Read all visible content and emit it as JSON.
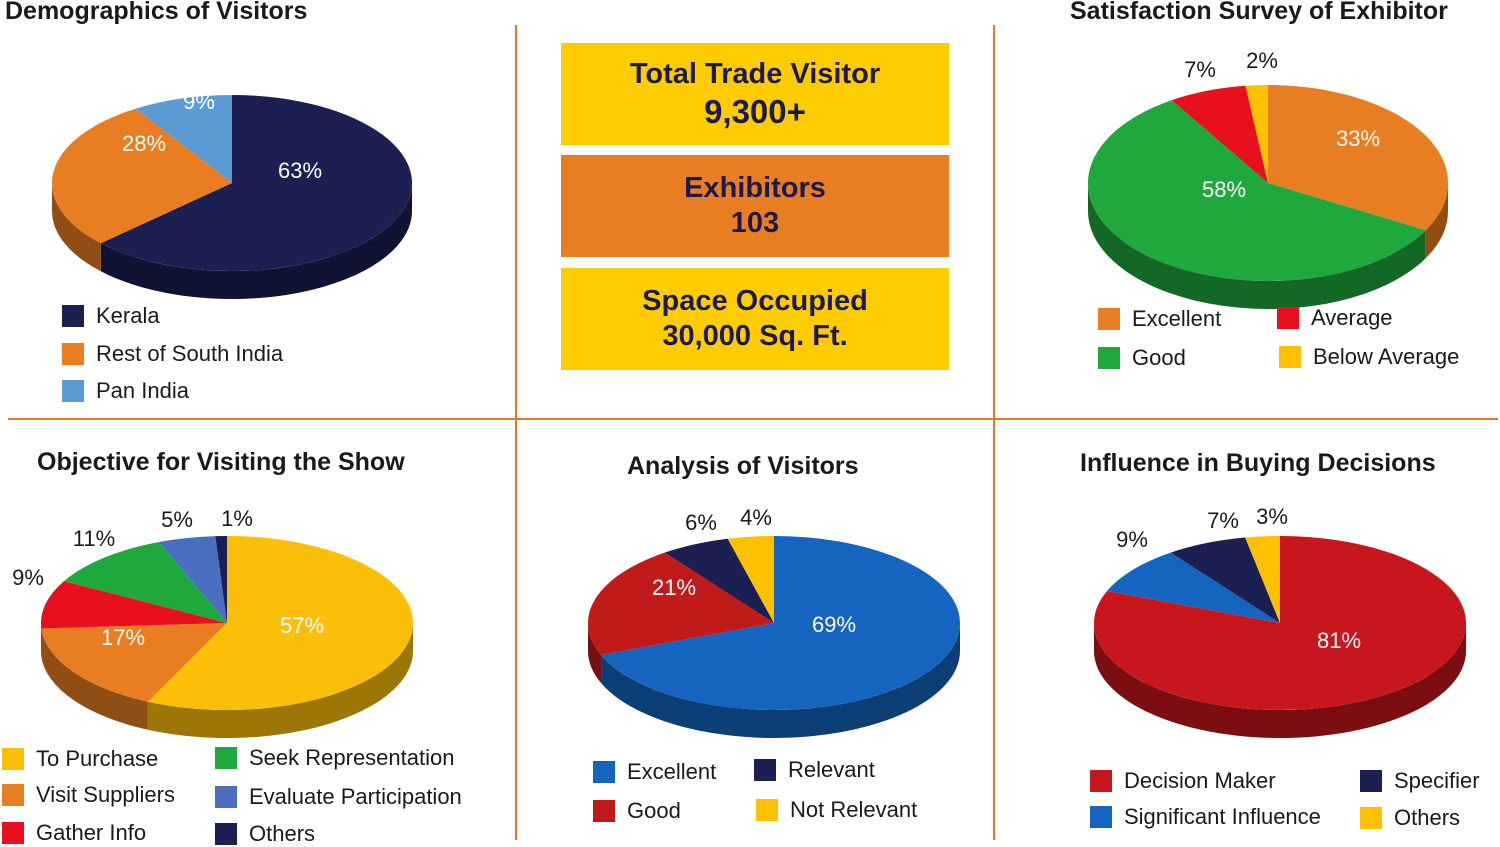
{
  "stats": [
    {
      "label": "Total Trade Visitor",
      "value": "9,300+",
      "color": "#ffcc00"
    },
    {
      "label": "Exhibitors",
      "value": "103",
      "color": "#e87d22"
    },
    {
      "label": "Space Occupied",
      "value": "30,000 Sq. Ft.",
      "color": "#ffcc00"
    }
  ],
  "chart_data": [
    {
      "type": "pie",
      "title": "Demographics of Visitors",
      "categories": [
        "Kerala",
        "Rest of South India",
        "Pan India"
      ],
      "values": [
        63,
        28,
        9
      ],
      "value_labels": [
        "63%",
        "28%",
        "9%"
      ],
      "colors": [
        "#1c1f52",
        "#e87d22",
        "#5b9bd5"
      ],
      "legend_position": "bottom"
    },
    {
      "type": "pie",
      "title": "Satisfaction Survey of Exhibitor",
      "categories": [
        "Excellent",
        "Good",
        "Average",
        "Below Average"
      ],
      "values": [
        33,
        58,
        7,
        2
      ],
      "value_labels": [
        "33%",
        "58%",
        "7%",
        "2%"
      ],
      "colors": [
        "#e87d22",
        "#1fa83c",
        "#e8101e",
        "#ffc000"
      ],
      "legend_position": "bottom"
    },
    {
      "type": "pie",
      "title": "Objective for Visiting the Show",
      "categories": [
        "To Purchase",
        "Visit Suppliers",
        "Gather Info",
        "Seek Representation",
        "Evaluate Participation",
        "Others"
      ],
      "values": [
        57,
        17,
        9,
        11,
        5,
        1
      ],
      "value_labels": [
        "57%",
        "17%",
        "9%",
        "11%",
        "5%",
        "1%"
      ],
      "colors": [
        "#fbbf0a",
        "#e87d22",
        "#e8101e",
        "#1fa83c",
        "#4a6fc0",
        "#1c1f52"
      ],
      "legend_position": "bottom"
    },
    {
      "type": "pie",
      "title": "Analysis of Visitors",
      "categories": [
        "Excellent",
        "Good",
        "Relevant",
        "Not Relevant"
      ],
      "values": [
        69,
        21,
        6,
        4
      ],
      "value_labels": [
        "69%",
        "21%",
        "6%",
        "4%"
      ],
      "colors": [
        "#1565c0",
        "#c01a1a",
        "#1c1f52",
        "#ffc000"
      ],
      "legend_position": "bottom"
    },
    {
      "type": "pie",
      "title": "Influence in Buying Decisions",
      "categories": [
        "Decision Maker",
        "Significant Influence",
        "Specifier",
        "Others"
      ],
      "values": [
        81,
        9,
        7,
        3
      ],
      "value_labels": [
        "81%",
        "9%",
        "7%",
        "3%"
      ],
      "colors": [
        "#c8161d",
        "#1565c0",
        "#1c1f52",
        "#ffc000"
      ],
      "legend_position": "bottom"
    }
  ]
}
